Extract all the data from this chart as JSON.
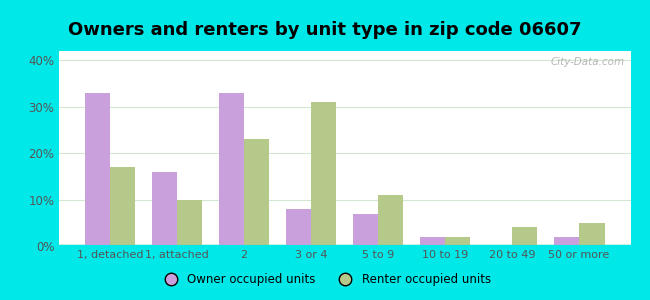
{
  "title": "Owners and renters by unit type in zip code 06607",
  "categories": [
    "1, detached",
    "1, attached",
    "2",
    "3 or 4",
    "5 to 9",
    "10 to 19",
    "20 to 49",
    "50 or more"
  ],
  "owner_values": [
    33,
    16,
    33,
    8,
    7,
    2,
    0,
    2
  ],
  "renter_values": [
    17,
    10,
    23,
    31,
    11,
    2,
    4,
    5
  ],
  "owner_color": "#c9a0dc",
  "renter_color": "#b5c98a",
  "background_outer": "#00e8e8",
  "ylabel": "",
  "ylim": [
    0,
    42
  ],
  "yticks": [
    0,
    10,
    20,
    30,
    40
  ],
  "legend_owner": "Owner occupied units",
  "legend_renter": "Renter occupied units",
  "title_fontsize": 13,
  "bar_width": 0.38,
  "watermark": "City-Data.com",
  "grid_color": "#d0e8d0",
  "tick_color": "#555555",
  "label_color": "#555555"
}
